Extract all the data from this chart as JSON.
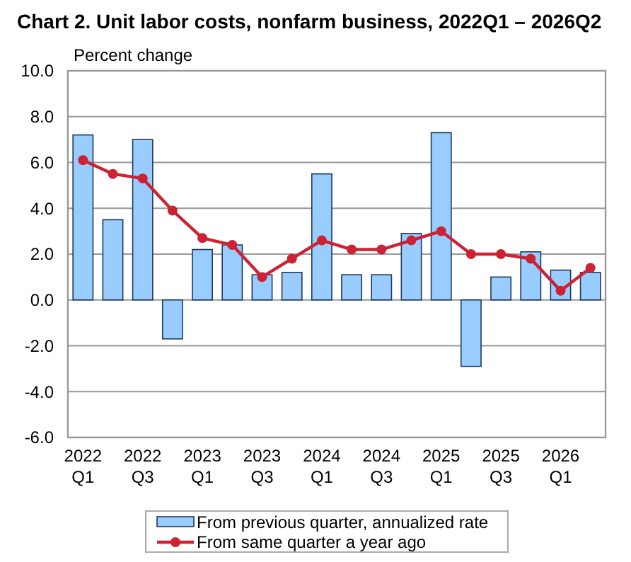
{
  "chart_data": {
    "type": "bar",
    "title": "Chart  2. Unit labor costs, nonfarm business, 2022Q1 – 2026Q2",
    "ylabel": "Percent change",
    "categories": [
      "2022 Q1",
      null,
      "2022 Q3",
      null,
      "2023 Q1",
      null,
      "2023 Q3",
      null,
      "2024 Q1",
      null,
      "2024 Q3",
      null,
      "2025 Q1",
      null,
      "2025 Q3",
      null,
      "2026 Q1",
      null
    ],
    "series": [
      {
        "name": "From previous quarter, annualized rate",
        "color": "#99ccff",
        "values": [
          7.2,
          3.5,
          7.0,
          -1.7,
          2.2,
          2.4,
          1.1,
          1.2,
          5.5,
          1.1,
          1.1,
          2.9,
          7.3,
          -2.9,
          1.0,
          2.1,
          1.3,
          1.2
        ]
      },
      {
        "name": "From same quarter a year ago",
        "type": "line",
        "color": "#cc2233",
        "values": [
          6.1,
          5.5,
          5.3,
          3.9,
          2.7,
          2.4,
          1.0,
          1.8,
          2.6,
          2.2,
          2.2,
          2.6,
          3.0,
          2.0,
          2.0,
          1.8,
          0.4,
          1.4
        ]
      }
    ],
    "ylim": [
      -6,
      10
    ],
    "yticks": [
      {
        "value": -6,
        "label": "-6.0"
      },
      {
        "value": -4,
        "label": "-4.0"
      },
      {
        "value": -2,
        "label": "-2.0"
      },
      {
        "value": 0,
        "label": "0.0"
      },
      {
        "value": 2,
        "label": "2.0"
      },
      {
        "value": 4,
        "label": "4.0"
      },
      {
        "value": 6,
        "label": "6.0"
      },
      {
        "value": 8,
        "label": "8.0"
      },
      {
        "value": 10,
        "label": "10.0"
      }
    ],
    "grid": "y",
    "legend": "bottom",
    "marker": "circle",
    "line_style": "solid"
  }
}
